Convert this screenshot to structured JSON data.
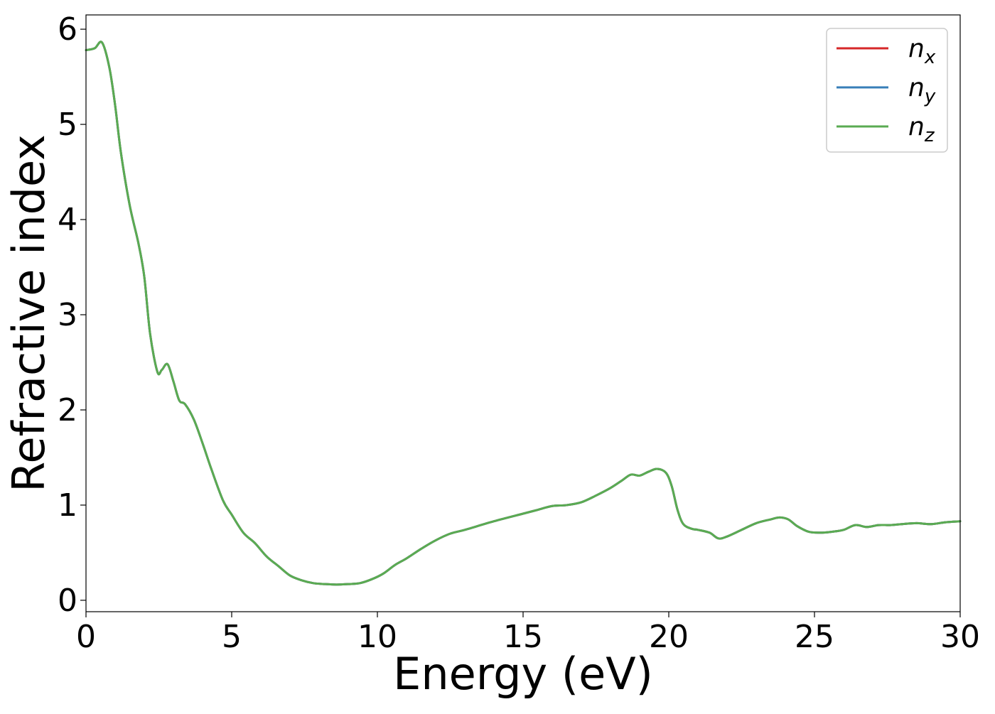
{
  "chart_data": {
    "type": "line",
    "title": "",
    "xlabel": "Energy (eV)",
    "ylabel": "Refractive index",
    "xlim": [
      0,
      30
    ],
    "ylim": [
      -0.12,
      6.15
    ],
    "xticks": [
      0,
      5,
      10,
      15,
      20,
      25,
      30
    ],
    "yticks": [
      0,
      1,
      2,
      3,
      4,
      5,
      6
    ],
    "grid": false,
    "legend_position": "top-right",
    "x": [
      0,
      0.3,
      0.55,
      0.8,
      1.0,
      1.2,
      1.5,
      1.8,
      2.0,
      2.2,
      2.45,
      2.6,
      2.8,
      3.0,
      3.2,
      3.4,
      3.7,
      4.0,
      4.3,
      4.7,
      5.0,
      5.4,
      5.8,
      6.2,
      6.6,
      7.0,
      7.4,
      7.8,
      8.2,
      8.6,
      9.0,
      9.4,
      9.8,
      10.2,
      10.6,
      11.0,
      11.5,
      12.0,
      12.5,
      13.0,
      14.0,
      15.0,
      15.5,
      16.0,
      16.5,
      17.0,
      17.5,
      18.0,
      18.4,
      18.7,
      19.0,
      19.3,
      19.6,
      19.9,
      20.1,
      20.3,
      20.5,
      20.8,
      21.0,
      21.4,
      21.7,
      22.0,
      22.5,
      23.0,
      23.5,
      23.8,
      24.1,
      24.4,
      24.8,
      25.2,
      25.6,
      26.0,
      26.4,
      26.8,
      27.2,
      27.6,
      28.0,
      28.5,
      29.0,
      29.5,
      30.0
    ],
    "series": [
      {
        "name": "n",
        "subscript": "x",
        "color": "#d62728",
        "values": [
          5.78,
          5.8,
          5.86,
          5.6,
          5.2,
          4.7,
          4.15,
          3.75,
          3.4,
          2.8,
          2.4,
          2.42,
          2.48,
          2.3,
          2.1,
          2.06,
          1.9,
          1.65,
          1.38,
          1.05,
          0.9,
          0.71,
          0.6,
          0.46,
          0.36,
          0.26,
          0.21,
          0.18,
          0.17,
          0.165,
          0.17,
          0.18,
          0.22,
          0.28,
          0.37,
          0.44,
          0.54,
          0.63,
          0.7,
          0.74,
          0.83,
          0.91,
          0.95,
          0.99,
          1.0,
          1.03,
          1.1,
          1.18,
          1.26,
          1.32,
          1.31,
          1.35,
          1.38,
          1.34,
          1.2,
          0.95,
          0.8,
          0.75,
          0.74,
          0.71,
          0.65,
          0.67,
          0.74,
          0.81,
          0.85,
          0.87,
          0.85,
          0.78,
          0.72,
          0.71,
          0.72,
          0.74,
          0.79,
          0.77,
          0.79,
          0.79,
          0.8,
          0.81,
          0.8,
          0.82,
          0.83
        ]
      },
      {
        "name": "n",
        "subscript": "y",
        "color": "#377eb8",
        "values": [
          5.78,
          5.8,
          5.86,
          5.6,
          5.2,
          4.7,
          4.15,
          3.75,
          3.4,
          2.8,
          2.4,
          2.42,
          2.48,
          2.3,
          2.1,
          2.06,
          1.9,
          1.65,
          1.38,
          1.05,
          0.9,
          0.71,
          0.6,
          0.46,
          0.36,
          0.26,
          0.21,
          0.18,
          0.17,
          0.165,
          0.17,
          0.18,
          0.22,
          0.28,
          0.37,
          0.44,
          0.54,
          0.63,
          0.7,
          0.74,
          0.83,
          0.91,
          0.95,
          0.99,
          1.0,
          1.03,
          1.1,
          1.18,
          1.26,
          1.32,
          1.31,
          1.35,
          1.38,
          1.34,
          1.2,
          0.95,
          0.8,
          0.75,
          0.74,
          0.71,
          0.65,
          0.67,
          0.74,
          0.81,
          0.85,
          0.87,
          0.85,
          0.78,
          0.72,
          0.71,
          0.72,
          0.74,
          0.79,
          0.77,
          0.79,
          0.79,
          0.8,
          0.81,
          0.8,
          0.82,
          0.83
        ]
      },
      {
        "name": "n",
        "subscript": "z",
        "color": "#5aab52",
        "values": [
          5.78,
          5.8,
          5.86,
          5.6,
          5.2,
          4.7,
          4.15,
          3.75,
          3.4,
          2.8,
          2.4,
          2.42,
          2.48,
          2.3,
          2.1,
          2.06,
          1.9,
          1.65,
          1.38,
          1.05,
          0.9,
          0.71,
          0.6,
          0.46,
          0.36,
          0.26,
          0.21,
          0.18,
          0.17,
          0.165,
          0.17,
          0.18,
          0.22,
          0.28,
          0.37,
          0.44,
          0.54,
          0.63,
          0.7,
          0.74,
          0.83,
          0.91,
          0.95,
          0.99,
          1.0,
          1.03,
          1.1,
          1.18,
          1.26,
          1.32,
          1.31,
          1.35,
          1.38,
          1.34,
          1.2,
          0.95,
          0.8,
          0.75,
          0.74,
          0.71,
          0.65,
          0.67,
          0.74,
          0.81,
          0.85,
          0.87,
          0.85,
          0.78,
          0.72,
          0.71,
          0.72,
          0.74,
          0.79,
          0.77,
          0.79,
          0.79,
          0.8,
          0.81,
          0.8,
          0.82,
          0.83
        ]
      }
    ]
  }
}
